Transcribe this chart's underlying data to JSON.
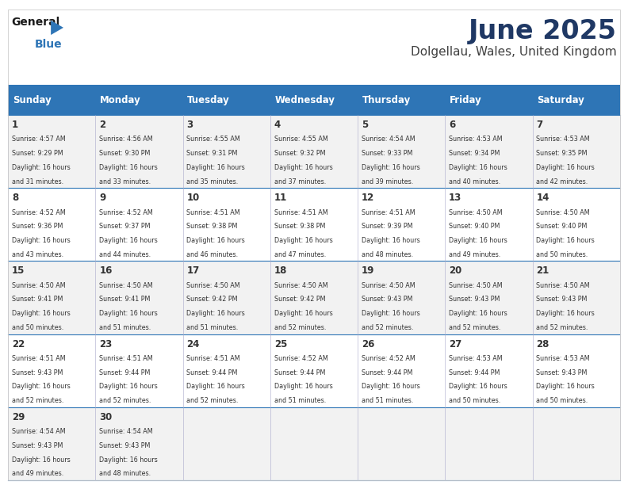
{
  "title": "June 2025",
  "subtitle": "Dolgellau, Wales, United Kingdom",
  "days_of_week": [
    "Sunday",
    "Monday",
    "Tuesday",
    "Wednesday",
    "Thursday",
    "Friday",
    "Saturday"
  ],
  "header_bg": "#2E75B6",
  "header_text": "#FFFFFF",
  "cell_bg_odd": "#F2F2F2",
  "cell_bg_even": "#FFFFFF",
  "border_color": "#2E75B6",
  "text_color": "#333333",
  "title_color": "#1F3864",
  "logo_black": "#1A1A1A",
  "logo_blue": "#2E75B6",
  "calendar": [
    [
      {
        "day": 1,
        "sunrise": "4:57 AM",
        "sunset": "9:29 PM",
        "daylight": "16 hours and 31 minutes."
      },
      {
        "day": 2,
        "sunrise": "4:56 AM",
        "sunset": "9:30 PM",
        "daylight": "16 hours and 33 minutes."
      },
      {
        "day": 3,
        "sunrise": "4:55 AM",
        "sunset": "9:31 PM",
        "daylight": "16 hours and 35 minutes."
      },
      {
        "day": 4,
        "sunrise": "4:55 AM",
        "sunset": "9:32 PM",
        "daylight": "16 hours and 37 minutes."
      },
      {
        "day": 5,
        "sunrise": "4:54 AM",
        "sunset": "9:33 PM",
        "daylight": "16 hours and 39 minutes."
      },
      {
        "day": 6,
        "sunrise": "4:53 AM",
        "sunset": "9:34 PM",
        "daylight": "16 hours and 40 minutes."
      },
      {
        "day": 7,
        "sunrise": "4:53 AM",
        "sunset": "9:35 PM",
        "daylight": "16 hours and 42 minutes."
      }
    ],
    [
      {
        "day": 8,
        "sunrise": "4:52 AM",
        "sunset": "9:36 PM",
        "daylight": "16 hours and 43 minutes."
      },
      {
        "day": 9,
        "sunrise": "4:52 AM",
        "sunset": "9:37 PM",
        "daylight": "16 hours and 44 minutes."
      },
      {
        "day": 10,
        "sunrise": "4:51 AM",
        "sunset": "9:38 PM",
        "daylight": "16 hours and 46 minutes."
      },
      {
        "day": 11,
        "sunrise": "4:51 AM",
        "sunset": "9:38 PM",
        "daylight": "16 hours and 47 minutes."
      },
      {
        "day": 12,
        "sunrise": "4:51 AM",
        "sunset": "9:39 PM",
        "daylight": "16 hours and 48 minutes."
      },
      {
        "day": 13,
        "sunrise": "4:50 AM",
        "sunset": "9:40 PM",
        "daylight": "16 hours and 49 minutes."
      },
      {
        "day": 14,
        "sunrise": "4:50 AM",
        "sunset": "9:40 PM",
        "daylight": "16 hours and 50 minutes."
      }
    ],
    [
      {
        "day": 15,
        "sunrise": "4:50 AM",
        "sunset": "9:41 PM",
        "daylight": "16 hours and 50 minutes."
      },
      {
        "day": 16,
        "sunrise": "4:50 AM",
        "sunset": "9:41 PM",
        "daylight": "16 hours and 51 minutes."
      },
      {
        "day": 17,
        "sunrise": "4:50 AM",
        "sunset": "9:42 PM",
        "daylight": "16 hours and 51 minutes."
      },
      {
        "day": 18,
        "sunrise": "4:50 AM",
        "sunset": "9:42 PM",
        "daylight": "16 hours and 52 minutes."
      },
      {
        "day": 19,
        "sunrise": "4:50 AM",
        "sunset": "9:43 PM",
        "daylight": "16 hours and 52 minutes."
      },
      {
        "day": 20,
        "sunrise": "4:50 AM",
        "sunset": "9:43 PM",
        "daylight": "16 hours and 52 minutes."
      },
      {
        "day": 21,
        "sunrise": "4:50 AM",
        "sunset": "9:43 PM",
        "daylight": "16 hours and 52 minutes."
      }
    ],
    [
      {
        "day": 22,
        "sunrise": "4:51 AM",
        "sunset": "9:43 PM",
        "daylight": "16 hours and 52 minutes."
      },
      {
        "day": 23,
        "sunrise": "4:51 AM",
        "sunset": "9:44 PM",
        "daylight": "16 hours and 52 minutes."
      },
      {
        "day": 24,
        "sunrise": "4:51 AM",
        "sunset": "9:44 PM",
        "daylight": "16 hours and 52 minutes."
      },
      {
        "day": 25,
        "sunrise": "4:52 AM",
        "sunset": "9:44 PM",
        "daylight": "16 hours and 51 minutes."
      },
      {
        "day": 26,
        "sunrise": "4:52 AM",
        "sunset": "9:44 PM",
        "daylight": "16 hours and 51 minutes."
      },
      {
        "day": 27,
        "sunrise": "4:53 AM",
        "sunset": "9:44 PM",
        "daylight": "16 hours and 50 minutes."
      },
      {
        "day": 28,
        "sunrise": "4:53 AM",
        "sunset": "9:43 PM",
        "daylight": "16 hours and 50 minutes."
      }
    ],
    [
      {
        "day": 29,
        "sunrise": "4:54 AM",
        "sunset": "9:43 PM",
        "daylight": "16 hours and 49 minutes."
      },
      {
        "day": 30,
        "sunrise": "4:54 AM",
        "sunset": "9:43 PM",
        "daylight": "16 hours and 48 minutes."
      },
      null,
      null,
      null,
      null,
      null
    ]
  ]
}
